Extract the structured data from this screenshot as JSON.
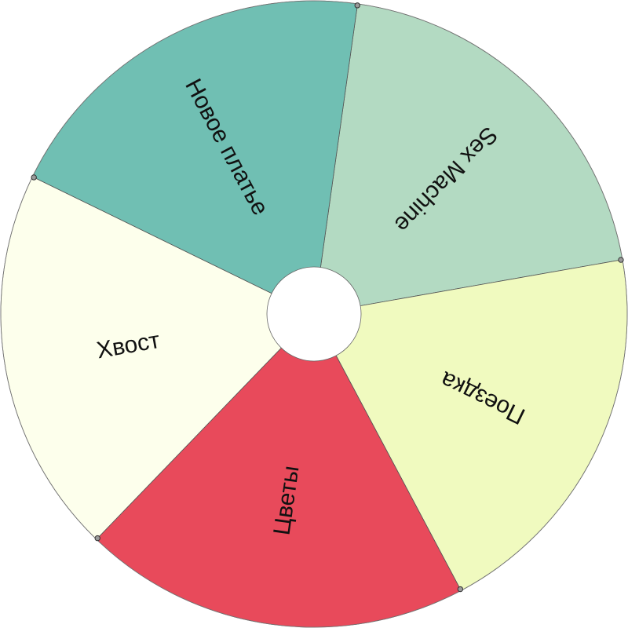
{
  "wheel": {
    "segments": [
      {
        "label": "Sex Machine",
        "color": "#b3dac2"
      },
      {
        "label": "Поездка",
        "color": "#f0fabf"
      },
      {
        "label": "Цветы",
        "color": "#e84a5b"
      },
      {
        "label": "Хвост",
        "color": "#fdffec"
      },
      {
        "label": "Новое платье",
        "color": "#70bfb3"
      }
    ],
    "hub_color": "#ffffff"
  }
}
